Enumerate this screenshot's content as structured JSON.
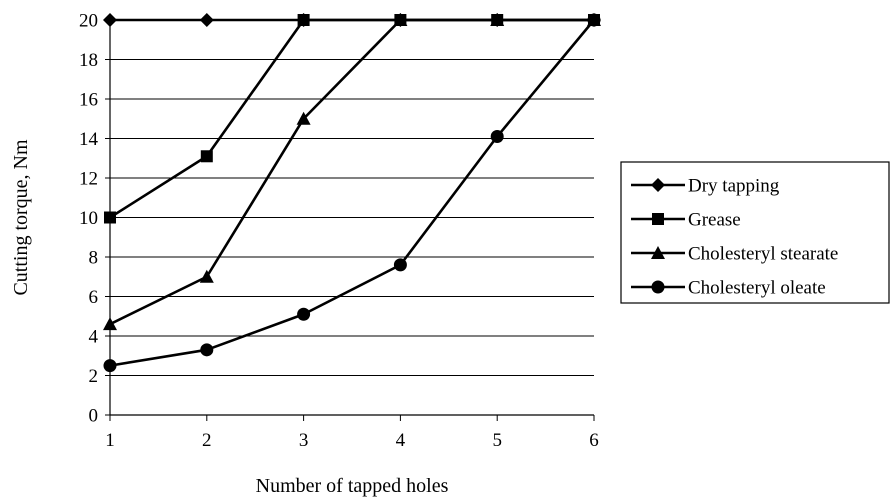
{
  "chart_data": {
    "type": "line",
    "title": "",
    "xlabel": "Number of tapped holes",
    "ylabel": "Cutting torque, Nm",
    "x": [
      1,
      2,
      3,
      4,
      5,
      6
    ],
    "x_tick_labels": [
      "1",
      "2",
      "3",
      "4",
      "5",
      "6"
    ],
    "xlim": [
      1,
      6
    ],
    "ylim": [
      0,
      20
    ],
    "y_ticks": [
      0,
      2,
      4,
      6,
      8,
      10,
      12,
      14,
      16,
      18,
      20
    ],
    "y_tick_labels": [
      "0",
      "2",
      "4",
      "6",
      "8",
      "10",
      "12",
      "14",
      "16",
      "18",
      "20"
    ],
    "grid": "horizontal",
    "legend_position": "right",
    "series": [
      {
        "name": "Dry tapping",
        "marker": "diamond",
        "values": [
          20,
          20,
          20,
          20,
          20,
          20
        ]
      },
      {
        "name": "Grease",
        "marker": "square",
        "values": [
          10,
          13.1,
          20,
          20,
          20,
          20
        ]
      },
      {
        "name": "Cholesteryl stearate",
        "marker": "triangle",
        "values": [
          4.6,
          7,
          15,
          20,
          20,
          20
        ]
      },
      {
        "name": "Cholesteryl oleate",
        "marker": "circle",
        "values": [
          2.5,
          3.3,
          5.1,
          7.6,
          14.1,
          20
        ]
      }
    ],
    "line_color": "#000000",
    "background_color": "#ffffff"
  }
}
